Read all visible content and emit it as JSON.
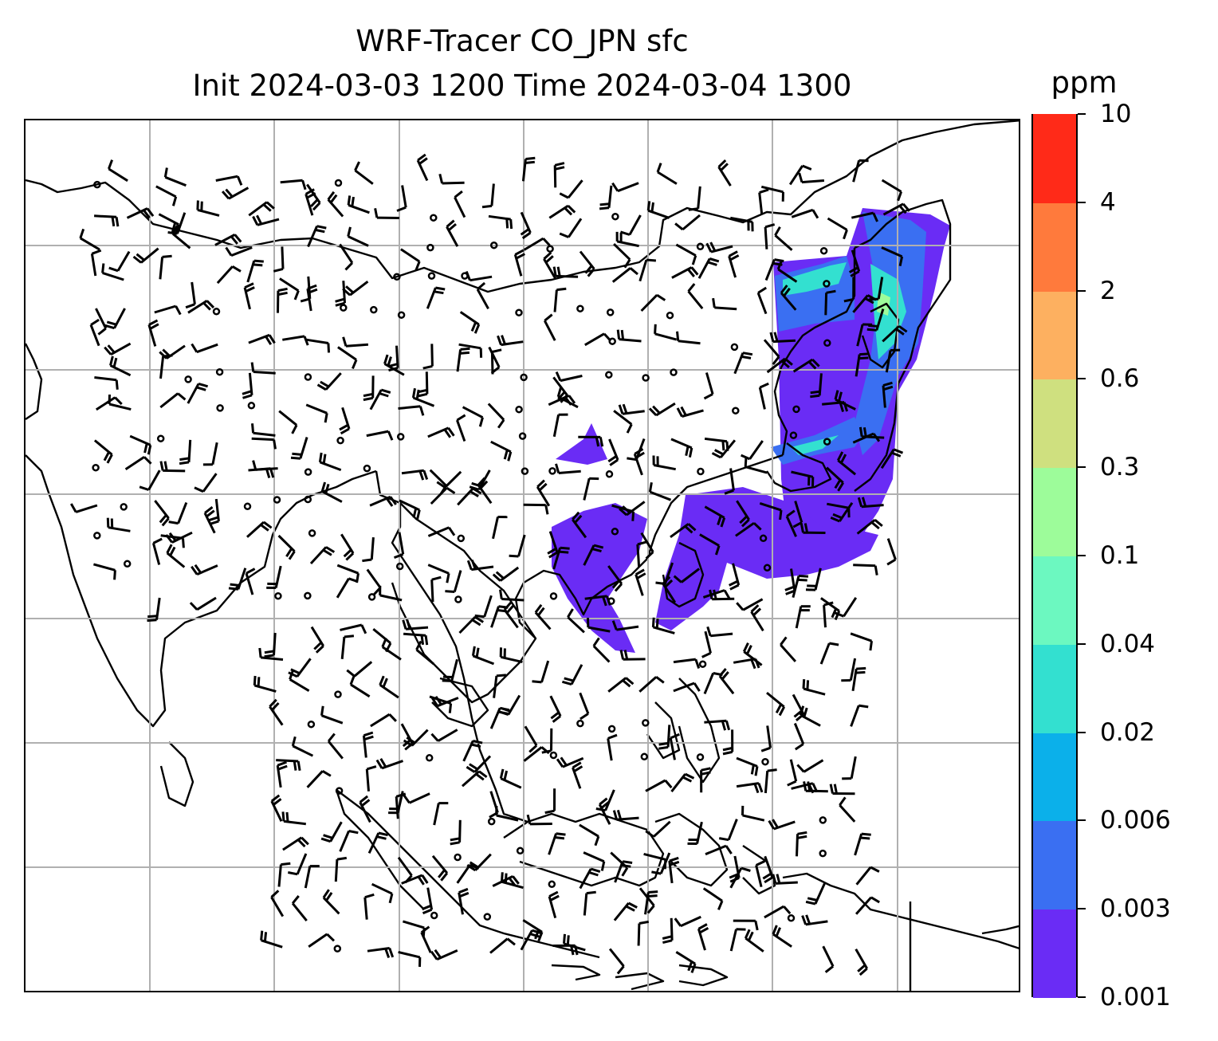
{
  "title": {
    "line1": "WRF-Tracer CO_JPN sfc",
    "line2": "Init 2024-03-03 1200 Time 2024-03-04 1300"
  },
  "colorbar": {
    "unit": "ppm",
    "levels": [
      "0.001",
      "0.003",
      "0.006",
      "0.02",
      "0.04",
      "0.1",
      "0.3",
      "0.6",
      "2",
      "4",
      "10"
    ],
    "colors": [
      "#6a2cf5",
      "#3a6ff2",
      "#0bb0ea",
      "#33e0d0",
      "#6cf8c0",
      "#9dfc9a",
      "#cfe07f",
      "#fdb060",
      "#ff7a3c",
      "#ff2a18"
    ]
  },
  "map": {
    "grid_color": "#b0b0b0",
    "coastline_color": "#000000",
    "barb_color": "#000000",
    "plume_colors": {
      "low": "#6a2cf5",
      "mid": "#3a6ff2",
      "high": "#33e0d0",
      "peak": "#9dfc9a"
    }
  }
}
